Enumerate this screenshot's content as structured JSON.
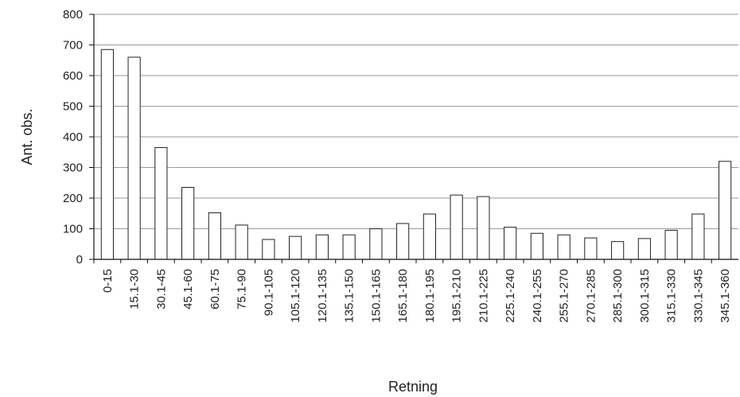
{
  "chart_data": {
    "type": "bar",
    "title": "",
    "xlabel": "Retning",
    "ylabel": "Ant. obs.",
    "ylim": [
      0,
      800
    ],
    "yticks": [
      0,
      100,
      200,
      300,
      400,
      500,
      600,
      700,
      800
    ],
    "grid": true,
    "categories": [
      "0-15",
      "15.1-30",
      "30.1-45",
      "45.1-60",
      "60.1-75",
      "75.1-90",
      "90.1-105",
      "105.1-120",
      "120.1-135",
      "135.1-150",
      "150.1-165",
      "165.1-180",
      "180.1-195",
      "195.1-210",
      "210.1-225",
      "225.1-240",
      "240.1-255",
      "255.1-270",
      "270.1-285",
      "285.1-300",
      "300.1-315",
      "315.1-330",
      "330.1-345",
      "345.1-360"
    ],
    "values": [
      685,
      660,
      365,
      235,
      152,
      112,
      65,
      75,
      80,
      80,
      100,
      117,
      148,
      210,
      205,
      105,
      85,
      80,
      70,
      58,
      68,
      95,
      148,
      320
    ],
    "colors": {
      "bar_fill": "#ffffff",
      "bar_stroke": "#222222",
      "grid": "#9a9a9a",
      "axis": "#111111"
    }
  }
}
